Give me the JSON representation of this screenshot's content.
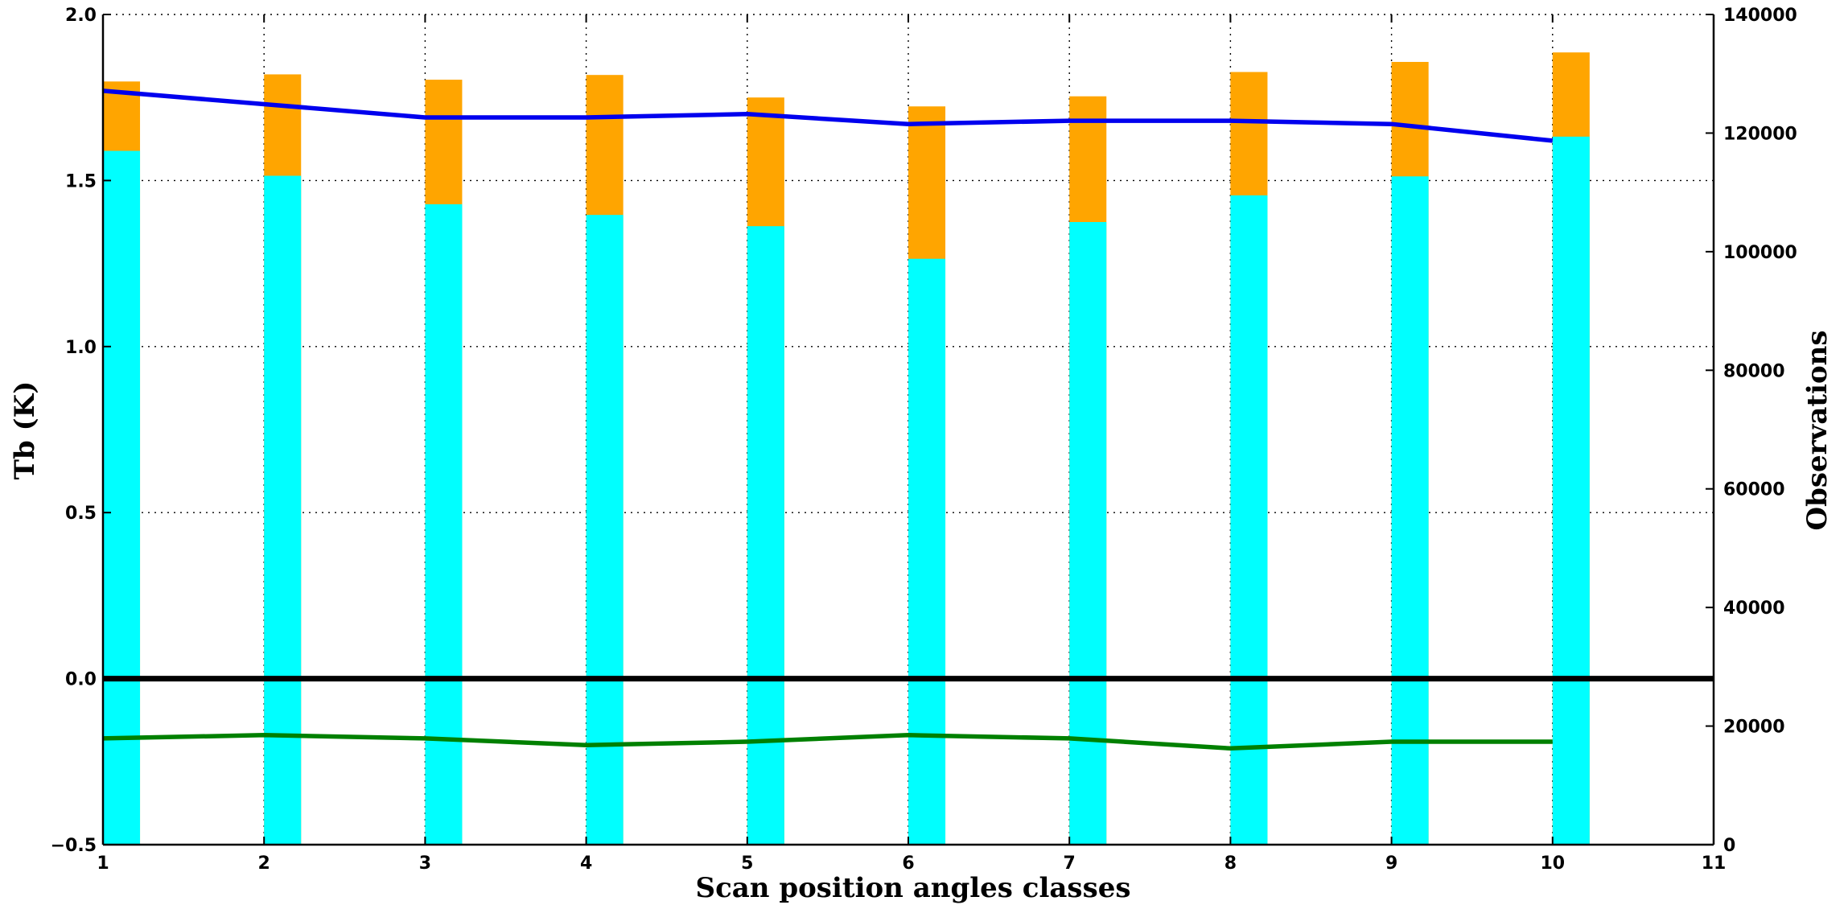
{
  "chart_data": {
    "type": "bar",
    "title": "",
    "xlabel": "Scan position angles classes",
    "ylabel": "Tb (K)",
    "y2label": "Observations",
    "xlim": [
      1,
      11
    ],
    "ylim": [
      -0.5,
      2.0
    ],
    "y2lim": [
      0,
      140000
    ],
    "x_ticks": [
      "1",
      "2",
      "3",
      "4",
      "5",
      "6",
      "7",
      "8",
      "9",
      "10",
      "11"
    ],
    "y_ticks": [
      "2.0",
      "1.5",
      "1.0",
      "0.5",
      "0.0",
      "-0.5"
    ],
    "y2_ticks": [
      "140000",
      "120000",
      "100000",
      "80000",
      "60000",
      "40000",
      "20000",
      "0"
    ],
    "grid": true,
    "categories": [
      1,
      2,
      3,
      4,
      5,
      6,
      7,
      8,
      9,
      10
    ],
    "bar_width": 0.23,
    "bar_series": [
      {
        "color": "#00FFFF",
        "axis": "right",
        "values": [
          117000,
          112800,
          108000,
          106200,
          104300,
          98800,
          105000,
          109500,
          112700,
          119400
        ]
      },
      {
        "color": "#FFA500",
        "axis": "right",
        "values": [
          128700,
          129900,
          129000,
          129800,
          126000,
          124500,
          126200,
          130300,
          132000,
          133600
        ]
      }
    ],
    "line_series": [
      {
        "color": "#0000EE",
        "axis": "left",
        "x": [
          1,
          2,
          3,
          4,
          5,
          6,
          7,
          8,
          9,
          10
        ],
        "values": [
          1.77,
          1.73,
          1.69,
          1.69,
          1.7,
          1.67,
          1.68,
          1.68,
          1.67,
          1.62
        ]
      },
      {
        "color": "#008000",
        "axis": "left",
        "x": [
          1,
          2,
          3,
          4,
          5,
          6,
          7,
          8,
          9,
          10
        ],
        "values": [
          -0.18,
          -0.17,
          -0.18,
          -0.2,
          -0.19,
          -0.17,
          -0.18,
          -0.21,
          -0.19,
          -0.19
        ]
      },
      {
        "color": "#000000",
        "axis": "left",
        "x": [
          1,
          11
        ],
        "values": [
          0.0,
          0.0
        ]
      }
    ]
  }
}
